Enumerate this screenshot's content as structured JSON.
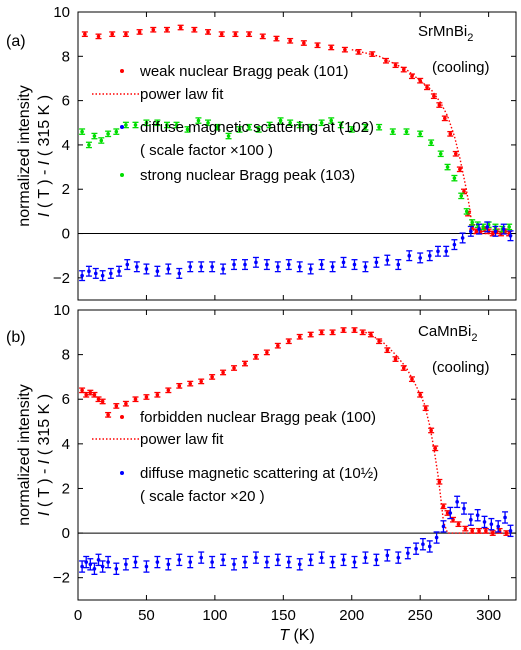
{
  "figure": {
    "ylabel_line1": "normalized intensity",
    "ylabel_line2_parts": [
      "I",
      " ( T ) - ",
      "I",
      " ( 315 K )"
    ],
    "xlabel_parts": [
      "T",
      " (K)"
    ]
  },
  "chart_data": [
    {
      "panel_label": "(a)",
      "type": "scatter",
      "material": "SrMnBi",
      "material_sub": "2",
      "condition": "(cooling)",
      "xlim": [
        0,
        320
      ],
      "ylim": [
        -3,
        10
      ],
      "yticks": [
        -2,
        0,
        2,
        4,
        6,
        8,
        10
      ],
      "xticks": [
        0,
        50,
        100,
        150,
        200,
        250,
        300
      ],
      "legend_position": "center-left",
      "legend": [
        {
          "marker": "dot",
          "color": "#ff0000",
          "label": "weak nuclear Bragg peak (101)"
        },
        {
          "marker": "dotted-line",
          "color": "#ff0000",
          "label": "power law fit"
        },
        {
          "marker": "dot",
          "color": "#0000ff",
          "label": "diffuse magnetic scattering at (102)"
        },
        {
          "marker": "none",
          "color": "#000000",
          "label": "( scale factor ×100 )"
        },
        {
          "marker": "dot",
          "color": "#00dd00",
          "label": "strong nuclear Bragg peak (103)"
        }
      ],
      "series": [
        {
          "name": "weak nuclear Bragg peak (101)",
          "color": "#ff0000",
          "x": [
            5,
            15,
            25,
            35,
            45,
            55,
            65,
            75,
            85,
            95,
            105,
            115,
            125,
            135,
            145,
            155,
            165,
            175,
            185,
            195,
            205,
            215,
            225,
            232,
            238,
            244,
            250,
            255,
            260,
            264,
            268,
            272,
            276,
            279,
            282,
            285,
            288,
            291,
            294,
            297,
            300,
            303,
            306,
            309,
            312,
            315
          ],
          "y": [
            9.0,
            8.9,
            9.0,
            9.0,
            9.1,
            9.2,
            9.2,
            9.3,
            9.2,
            9.1,
            9.0,
            9.0,
            9.0,
            8.9,
            8.8,
            8.7,
            8.6,
            8.5,
            8.4,
            8.3,
            8.2,
            8.1,
            7.8,
            7.6,
            7.4,
            7.1,
            6.9,
            6.6,
            6.2,
            5.8,
            5.2,
            4.5,
            3.6,
            2.9,
            1.9,
            0.9,
            0.3,
            0.1,
            0.1,
            0.2,
            0.1,
            0.0,
            0.1,
            0.0,
            0.1,
            0.0
          ],
          "err": 0.1
        },
        {
          "name": "power law fit",
          "color": "#ff0000",
          "style": "dotted",
          "x": [
            200,
            220,
            240,
            250,
            258,
            265,
            270,
            275,
            279,
            283,
            286,
            288,
            290,
            295,
            305,
            315
          ],
          "y": [
            8.3,
            8.0,
            7.4,
            6.9,
            6.5,
            5.9,
            5.3,
            4.4,
            3.4,
            2.2,
            1.2,
            0.3,
            0.0,
            0.0,
            0.0,
            0.0
          ]
        },
        {
          "name": "strong nuclear Bragg peak (103)",
          "color": "#00dd00",
          "x": [
            3,
            8,
            12,
            17,
            22,
            28,
            35,
            42,
            50,
            58,
            65,
            72,
            80,
            88,
            95,
            102,
            110,
            118,
            125,
            132,
            140,
            148,
            155,
            162,
            170,
            178,
            185,
            192,
            200,
            210,
            220,
            230,
            240,
            250,
            258,
            265,
            270,
            275,
            280,
            284,
            288,
            292,
            296,
            300,
            305,
            310,
            315
          ],
          "y": [
            4.6,
            4.0,
            4.4,
            4.2,
            4.5,
            4.6,
            4.9,
            4.9,
            5.0,
            5.0,
            4.9,
            4.9,
            4.7,
            5.1,
            5.0,
            4.8,
            4.4,
            4.7,
            4.8,
            4.7,
            4.9,
            5.1,
            5.0,
            4.9,
            4.8,
            5.0,
            5.1,
            4.9,
            4.7,
            4.8,
            4.8,
            4.6,
            4.6,
            4.5,
            4.1,
            3.6,
            3.0,
            2.5,
            1.7,
            1.0,
            0.5,
            0.4,
            0.3,
            0.4,
            0.3,
            0.2,
            0.3
          ],
          "err": 0.12
        },
        {
          "name": "diffuse magnetic scattering at (102)",
          "color": "#0000ff",
          "x": [
            3,
            8,
            13,
            18,
            24,
            30,
            36,
            43,
            50,
            58,
            66,
            74,
            82,
            90,
            98,
            106,
            114,
            122,
            130,
            138,
            146,
            154,
            162,
            170,
            178,
            186,
            194,
            202,
            210,
            218,
            226,
            234,
            242,
            250,
            257,
            263,
            269,
            275,
            281,
            287,
            293,
            299,
            305,
            311,
            316
          ],
          "y": [
            -1.9,
            -1.7,
            -1.8,
            -1.9,
            -1.8,
            -1.7,
            -1.4,
            -1.5,
            -1.6,
            -1.7,
            -1.6,
            -1.8,
            -1.5,
            -1.5,
            -1.5,
            -1.6,
            -1.4,
            -1.4,
            -1.3,
            -1.4,
            -1.5,
            -1.4,
            -1.5,
            -1.6,
            -1.4,
            -1.5,
            -1.3,
            -1.4,
            -1.5,
            -1.3,
            -1.2,
            -1.4,
            -1.0,
            -1.1,
            -1.0,
            -0.8,
            -0.8,
            -0.5,
            -0.2,
            0.1,
            0.2,
            0.3,
            0.1,
            0.2,
            -0.1
          ],
          "err": 0.22
        }
      ]
    },
    {
      "panel_label": "(b)",
      "type": "scatter",
      "material": "CaMnBi",
      "material_sub": "2",
      "condition": "(cooling)",
      "xlim": [
        0,
        320
      ],
      "ylim": [
        -3,
        10
      ],
      "yticks": [
        -2,
        0,
        2,
        4,
        6,
        8,
        10
      ],
      "xticks": [
        0,
        50,
        100,
        150,
        200,
        250,
        300
      ],
      "xticklabels": [
        "0",
        "50",
        "100",
        "150",
        "200",
        "250",
        "300"
      ],
      "legend_position": "center-left",
      "legend": [
        {
          "marker": "dot",
          "color": "#ff0000",
          "label": "forbidden nuclear Bragg peak (100)"
        },
        {
          "marker": "dotted-line",
          "color": "#ff0000",
          "label": "power law fit"
        },
        {
          "marker": "dot",
          "color": "#0000ff",
          "label": "diffuse magnetic scattering at (10½)"
        },
        {
          "marker": "none",
          "color": "#000000",
          "label": "( scale factor ×20 )"
        }
      ],
      "series": [
        {
          "name": "forbidden nuclear Bragg peak (100)",
          "color": "#ff0000",
          "x": [
            3,
            6,
            9,
            12,
            15,
            18,
            22,
            28,
            35,
            42,
            50,
            58,
            66,
            74,
            82,
            90,
            98,
            106,
            114,
            122,
            130,
            138,
            146,
            154,
            162,
            170,
            178,
            186,
            194,
            202,
            208,
            214,
            220,
            226,
            232,
            238,
            244,
            250,
            254,
            258,
            261,
            264,
            267,
            270,
            274,
            278,
            283,
            288,
            293,
            298,
            303,
            308,
            313
          ],
          "y": [
            6.4,
            6.2,
            6.3,
            6.2,
            6.0,
            5.9,
            5.3,
            5.7,
            5.8,
            6.0,
            6.1,
            6.2,
            6.4,
            6.6,
            6.7,
            6.8,
            7.0,
            7.2,
            7.4,
            7.6,
            7.9,
            8.1,
            8.4,
            8.6,
            8.8,
            8.9,
            9.0,
            9.0,
            9.1,
            9.1,
            9.0,
            8.9,
            8.6,
            8.2,
            7.8,
            7.4,
            6.9,
            6.2,
            5.6,
            4.6,
            3.8,
            2.3,
            1.2,
            0.9,
            0.6,
            0.4,
            0.2,
            0.1,
            0.1,
            0.1,
            0.0,
            0.1,
            0.0
          ],
          "err": 0.1
        },
        {
          "name": "power law fit",
          "color": "#ff0000",
          "style": "dotted",
          "x": [
            210,
            222,
            232,
            240,
            247,
            253,
            257,
            260,
            263,
            265,
            267,
            270,
            275,
            285,
            300,
            315
          ],
          "y": [
            9.0,
            8.6,
            8.0,
            7.4,
            6.6,
            5.8,
            4.8,
            3.8,
            2.6,
            1.6,
            0.5,
            0.0,
            0.0,
            0.0,
            0.0,
            0.0
          ]
        },
        {
          "name": "diffuse magnetic scattering at (10½)",
          "color": "#0000ff",
          "x": [
            3,
            6,
            9,
            12,
            15,
            18,
            22,
            28,
            35,
            42,
            50,
            58,
            66,
            74,
            82,
            90,
            98,
            106,
            114,
            122,
            130,
            138,
            146,
            154,
            162,
            170,
            178,
            186,
            194,
            202,
            210,
            218,
            226,
            234,
            241,
            247,
            252,
            257,
            262,
            267,
            272,
            277,
            282,
            287,
            292,
            297,
            302,
            307,
            312,
            316
          ],
          "y": [
            -1.5,
            -1.3,
            -1.4,
            -1.6,
            -1.2,
            -1.5,
            -1.3,
            -1.6,
            -1.4,
            -1.3,
            -1.5,
            -1.3,
            -1.4,
            -1.2,
            -1.3,
            -1.1,
            -1.3,
            -1.2,
            -1.4,
            -1.3,
            -1.1,
            -1.3,
            -1.2,
            -1.3,
            -1.4,
            -1.2,
            -1.1,
            -1.3,
            -1.2,
            -1.3,
            -1.1,
            -1.2,
            -1.0,
            -1.1,
            -0.9,
            -0.7,
            -0.5,
            -0.6,
            -0.2,
            0.3,
            0.9,
            1.4,
            1.1,
            0.6,
            0.8,
            0.5,
            0.4,
            0.3,
            0.7,
            0.1
          ],
          "err": 0.25
        }
      ]
    }
  ]
}
